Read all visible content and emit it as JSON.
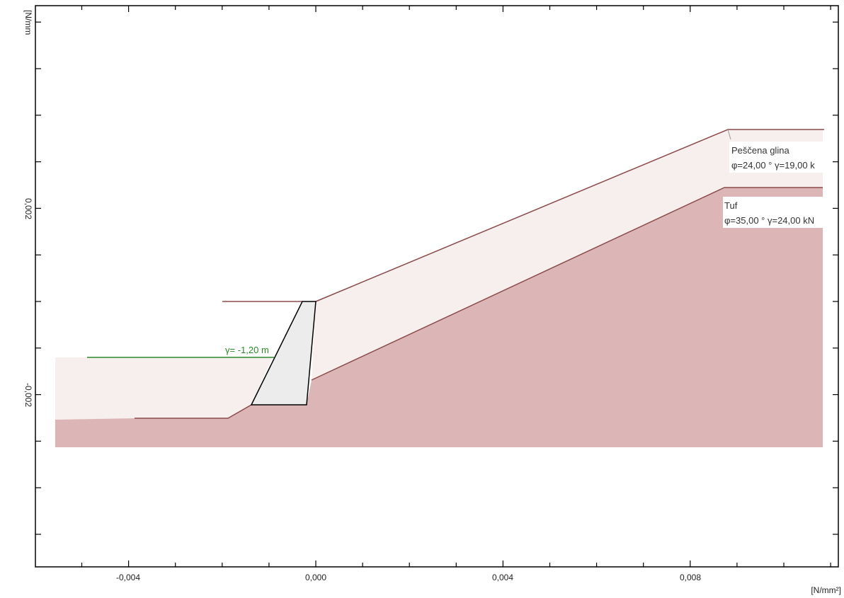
{
  "diagram": {
    "x_axis": {
      "tick_labels": [
        "-0,004",
        "0,000",
        "0,004",
        "0,008"
      ],
      "unit_label": "[N/mm²]"
    },
    "y_axis": {
      "tick_labels": [
        "0,002",
        "-0,002"
      ],
      "unit_label": "[N/mm"
    },
    "water_level_label": "γ= -1,20 m",
    "layers": [
      {
        "name": "Peščena glina",
        "parameters": "φ=24,00 ° γ=19,00 k",
        "fill_color": "#f7eeee"
      },
      {
        "name": "Tuf",
        "parameters": "φ=35,00 ° γ=24,00 kN",
        "fill_color": "#dcb6b6"
      }
    ],
    "colors": {
      "layer_boundary": "#8b4a4a",
      "water_line": "#2a8a2a",
      "wall_fill": "#ececec",
      "wall_outline": "#000000"
    }
  }
}
